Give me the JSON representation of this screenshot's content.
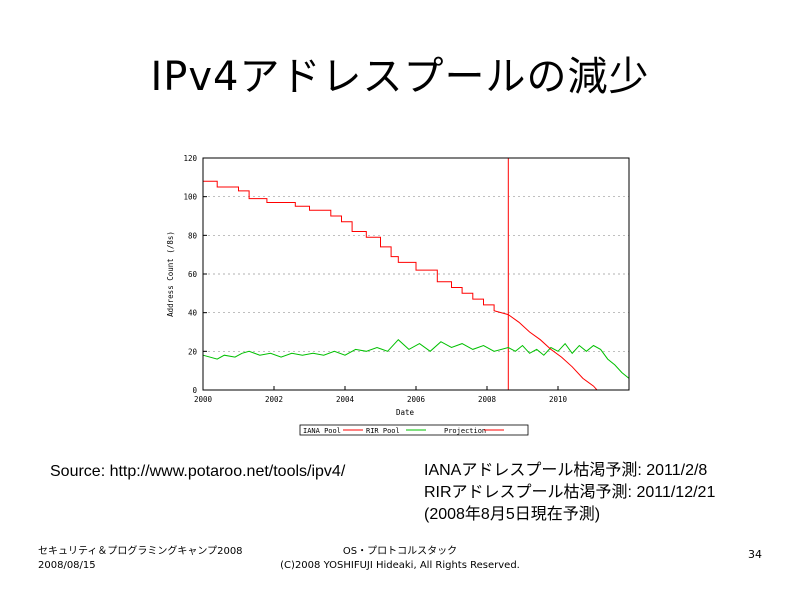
{
  "slide": {
    "title": "IPv4アドレスプールの減少",
    "source": "Source: http://www.potaroo.net/tools/ipv4/",
    "notes": [
      "IANAアドレスプール枯渇予測: 2011/2/8",
      "RIRアドレスプール枯渇予測: 2011/12/21",
      "(2008年8月5日現在予測)"
    ],
    "footer_left_1": "セキュリティ＆プログラミングキャンプ2008",
    "footer_left_2": "2008/08/15",
    "footer_center_1": "OS・プロトコルスタック",
    "footer_center_2": "(C)2008 YOSHIFUJI Hideaki, All Rights Reserved.",
    "page_number": "34"
  },
  "chart_data": {
    "type": "line",
    "xlabel": "Date",
    "ylabel": "Address Count (/8s)",
    "xlim": [
      2000,
      2012
    ],
    "ylim": [
      0,
      120
    ],
    "x_ticks": [
      2000,
      2002,
      2004,
      2006,
      2008,
      2010
    ],
    "y_ticks": [
      0,
      20,
      40,
      60,
      80,
      100,
      120
    ],
    "grid": true,
    "legend": "bottom-center",
    "vertical_marker_x": 2008.6,
    "colors": {
      "iana": "#ff0000",
      "rir": "#00c000",
      "projection": "#ff0000",
      "marker": "#ff0000"
    },
    "series": [
      {
        "name": "IANA Pool",
        "x": [
          2000.0,
          2000.4,
          2000.4,
          2001.0,
          2001.0,
          2001.3,
          2001.3,
          2001.8,
          2001.8,
          2002.6,
          2002.6,
          2003.0,
          2003.0,
          2003.6,
          2003.6,
          2003.9,
          2003.9,
          2004.2,
          2004.2,
          2004.6,
          2004.6,
          2005.0,
          2005.0,
          2005.3,
          2005.3,
          2005.5,
          2005.5,
          2006.0,
          2006.0,
          2006.6,
          2006.6,
          2007.0,
          2007.0,
          2007.3,
          2007.3,
          2007.6,
          2007.6,
          2007.9,
          2007.9,
          2008.2,
          2008.2,
          2008.6
        ],
        "y": [
          108,
          108,
          105,
          105,
          103,
          103,
          99,
          99,
          97,
          97,
          95,
          95,
          93,
          93,
          90,
          90,
          87,
          87,
          82,
          82,
          79,
          79,
          74,
          74,
          69,
          69,
          66,
          66,
          62,
          62,
          56,
          56,
          53,
          53,
          50,
          50,
          47,
          47,
          44,
          44,
          41,
          39
        ]
      },
      {
        "name": "RIR Pool",
        "x": [
          2000.0,
          2000.4,
          2000.6,
          2000.9,
          2001.1,
          2001.3,
          2001.6,
          2001.9,
          2002.2,
          2002.5,
          2002.8,
          2003.1,
          2003.4,
          2003.7,
          2004.0,
          2004.3,
          2004.6,
          2004.9,
          2005.2,
          2005.5,
          2005.8,
          2006.1,
          2006.4,
          2006.7,
          2007.0,
          2007.3,
          2007.6,
          2007.9,
          2008.2,
          2008.6,
          2008.8,
          2009.0,
          2009.2,
          2009.4,
          2009.6,
          2009.8,
          2010.0,
          2010.2,
          2010.4,
          2010.6,
          2010.8,
          2011.0,
          2011.2,
          2011.4,
          2011.6,
          2011.8,
          2012.0
        ],
        "y": [
          18,
          16,
          18,
          17,
          19,
          20,
          18,
          19,
          17,
          19,
          18,
          19,
          18,
          20,
          18,
          21,
          20,
          22,
          20,
          26,
          21,
          24,
          20,
          25,
          22,
          24,
          21,
          23,
          20,
          22,
          20,
          23,
          19,
          21,
          18,
          22,
          20,
          24,
          19,
          23,
          20,
          23,
          21,
          16,
          13,
          9,
          6
        ]
      },
      {
        "name": "Projection",
        "x": [
          2008.6,
          2008.9,
          2009.2,
          2009.5,
          2009.8,
          2010.1,
          2010.4,
          2010.7,
          2011.0,
          2011.1,
          2011.3
        ],
        "y": [
          39,
          35,
          30,
          26,
          21,
          17,
          12,
          6,
          2,
          0,
          0
        ]
      }
    ]
  }
}
